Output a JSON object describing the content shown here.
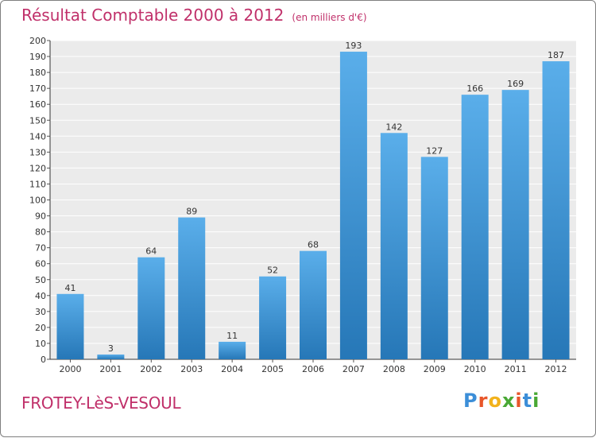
{
  "header": {
    "title": "Résultat Comptable 2000 à 2012",
    "subtitle": "(en milliers d'€)"
  },
  "footer": {
    "town": "FROTEY-LèS-VESOUL",
    "logo_letters": [
      "P",
      "r",
      "o",
      "x",
      "i",
      "t",
      "i"
    ],
    "logo_colors": [
      "#3c8ed8",
      "#e8562a",
      "#f2b21c",
      "#49a834",
      "#e8562a",
      "#3c8ed8",
      "#49a834"
    ]
  },
  "colors": {
    "title": "#c0306a",
    "bar_light": "#5aaeea",
    "bar_dark": "#2677b7",
    "plot_bg": "#ebebeb",
    "grid": "#ffffff"
  },
  "chart_data": {
    "type": "bar",
    "title": "Résultat Comptable 2000 à 2012",
    "subtitle": "(en milliers d'€)",
    "xlabel": "",
    "ylabel": "",
    "categories": [
      "2000",
      "2001",
      "2002",
      "2003",
      "2004",
      "2005",
      "2006",
      "2007",
      "2008",
      "2009",
      "2010",
      "2011",
      "2012"
    ],
    "values": [
      41,
      3,
      64,
      89,
      11,
      52,
      68,
      193,
      142,
      127,
      166,
      169,
      187
    ],
    "ylim": [
      0,
      200
    ],
    "yticks": [
      0,
      10,
      20,
      30,
      40,
      50,
      60,
      70,
      80,
      90,
      100,
      110,
      120,
      130,
      140,
      150,
      160,
      170,
      180,
      190,
      200
    ],
    "grid": true,
    "data_labels": true
  }
}
